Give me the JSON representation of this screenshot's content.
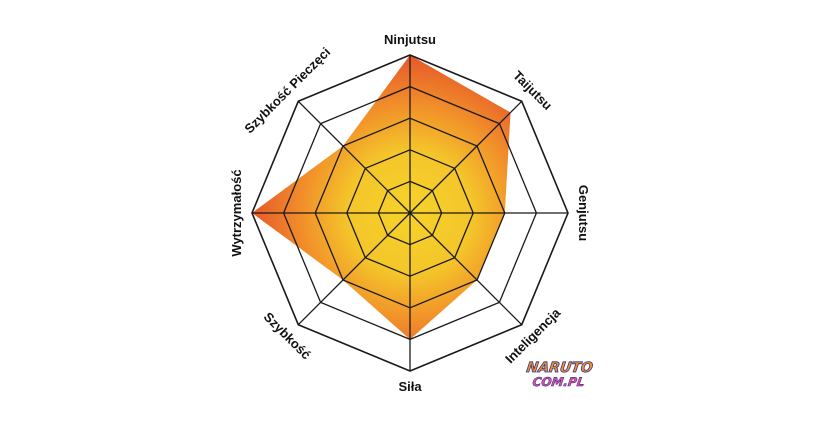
{
  "chart_data": {
    "type": "radar",
    "title": "",
    "rings": 5,
    "max": 5,
    "axes": [
      "Ninjutsu",
      "Taijutsu",
      "Genjutsu",
      "Inteligencja",
      "Siła",
      "Szybkość",
      "Wytrzymałość",
      "Szybkość Pieczęci"
    ],
    "series": [
      {
        "values": [
          5,
          4.5,
          3,
          3,
          4,
          3,
          5,
          3
        ]
      }
    ],
    "colors": {
      "fill_center": "#f6d329",
      "fill_mid": "#f2a52a",
      "fill_edge": "#e4502a",
      "grid": "#1a1a1a"
    }
  },
  "logo": {
    "line1": "NARUTO",
    "line2": "COM.PL",
    "colors": [
      "#f7931e",
      "#e94e9b",
      "#2e3192"
    ]
  }
}
